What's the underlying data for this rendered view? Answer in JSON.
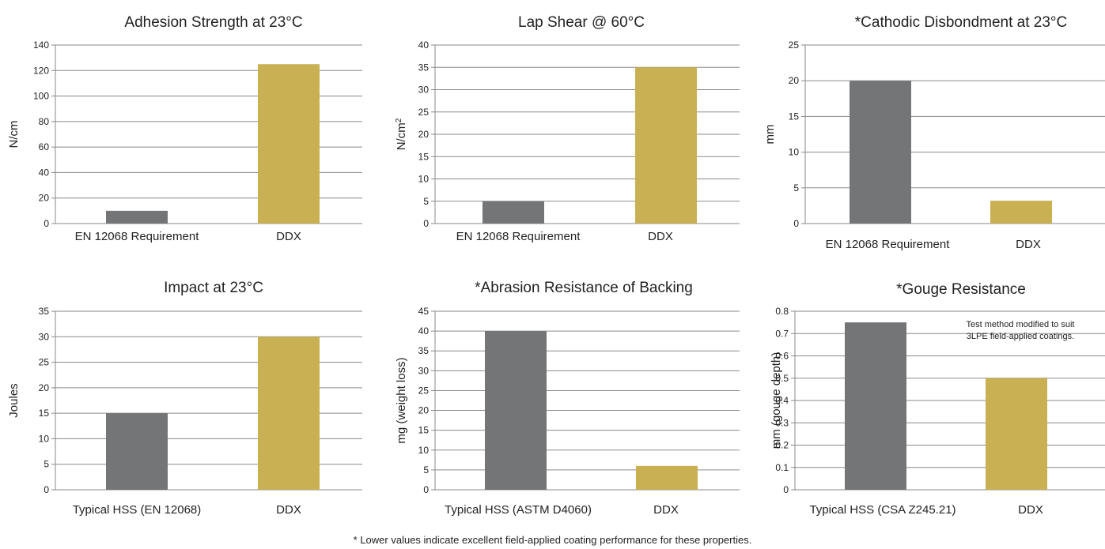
{
  "footnote": "* Lower values indicate excellent field-applied coating performance for these properties.",
  "colors": {
    "requirement_bar": "#737577",
    "ddx_bar": "#C9B153",
    "grid": "#8a8a8a",
    "text": "#222222"
  },
  "chart_data": [
    {
      "type": "bar",
      "title": "Adhesion Strength at 23°C",
      "ylabel": "N/cm",
      "categories": [
        "EN 12068 Requirement",
        "DDX"
      ],
      "values": [
        10,
        125
      ],
      "ylim": [
        0,
        140
      ],
      "yticks": [
        "0",
        "20",
        "40",
        "60",
        "80",
        "100",
        "120",
        "140"
      ],
      "grid": true
    },
    {
      "type": "bar",
      "title": "Lap Shear @ 60°C",
      "ylabel": "N/cm",
      "ylabel_sup": "2",
      "categories": [
        "EN 12068 Requirement",
        "DDX"
      ],
      "values": [
        5,
        35
      ],
      "ylim": [
        0,
        40
      ],
      "yticks": [
        "0",
        "5",
        "10",
        "15",
        "20",
        "25",
        "30",
        "35",
        "40"
      ],
      "grid": true
    },
    {
      "type": "bar",
      "title": "*Cathodic Disbondment at 23°C",
      "ylabel": "mm",
      "categories": [
        "EN 12068 Requirement",
        "DDX"
      ],
      "values": [
        20,
        3.2
      ],
      "ylim": [
        0,
        25
      ],
      "yticks": [
        "0",
        "5",
        "10",
        "15",
        "20",
        "25"
      ],
      "grid": true
    },
    {
      "type": "bar",
      "title": "Impact at 23°C",
      "ylabel": "Joules",
      "categories": [
        "Typical HSS (EN 12068)",
        "DDX"
      ],
      "values": [
        15,
        30
      ],
      "ylim": [
        0,
        35
      ],
      "yticks": [
        "0",
        "5",
        "10",
        "15",
        "20",
        "25",
        "30",
        "35"
      ],
      "grid": true
    },
    {
      "type": "bar",
      "title": "*Abrasion Resistance of Backing",
      "ylabel": "mg (weight loss)",
      "categories": [
        "Typical HSS (ASTM D4060)",
        "DDX"
      ],
      "values": [
        40,
        6
      ],
      "ylim": [
        0,
        45
      ],
      "yticks": [
        "0",
        "5",
        "10",
        "15",
        "20",
        "25",
        "30",
        "35",
        "40",
        "45"
      ],
      "grid": true
    },
    {
      "type": "bar",
      "title": "*Gouge Resistance",
      "ylabel": "mm (gouge depth)",
      "categories": [
        "Typical HSS (CSA Z245.21)",
        "DDX"
      ],
      "values": [
        0.75,
        0.5
      ],
      "ylim": [
        0,
        0.8
      ],
      "yticks": [
        "0",
        "0.1",
        "0.2",
        "0.3",
        "0.4",
        "0.5",
        "0.6",
        "0.7",
        "0.8"
      ],
      "grid": true,
      "annotation": [
        "Test method modified to suit",
        "3LPE field-applied coatings."
      ]
    }
  ]
}
